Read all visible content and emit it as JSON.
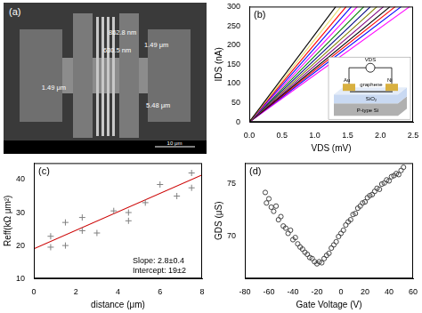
{
  "sem_image": {
    "panel_label": "(a)",
    "annotations": [
      "862.8 nm",
      "630.5 nm",
      "1.49 μm",
      "1.49 μm",
      "5.48 μm"
    ],
    "scale_bar": "10 μm"
  },
  "chart_data": [
    {
      "type": "line",
      "panel_label": "(b)",
      "x_label": "VDS (mV)",
      "y_label": "IDS (nA)",
      "xlim": [
        0,
        2.5
      ],
      "xticks": [
        {
          "value": 0,
          "label": "0.0"
        },
        {
          "value": 0.5,
          "label": "0.5"
        },
        {
          "value": 1,
          "label": "1.0"
        },
        {
          "value": 1.5,
          "label": "1.5"
        },
        {
          "value": 2,
          "label": "2.0"
        },
        {
          "value": 2.5,
          "label": "2.5"
        }
      ],
      "ylim": [
        0,
        300
      ],
      "yticks": [
        0,
        50,
        100,
        150,
        200,
        250,
        300
      ],
      "grid": false,
      "marker": "none",
      "line_style": "solid",
      "inset": {
        "texts": [
          "VDS",
          "Au",
          "Ni",
          "graphene",
          "SiO₂",
          "P-type Si"
        ]
      },
      "series": [
        {
          "color": "#000000",
          "x": [
            0,
            1.32
          ],
          "values": [
            0,
            300
          ]
        },
        {
          "color": "#e8e070",
          "x": [
            0,
            1.4
          ],
          "values": [
            0,
            300
          ]
        },
        {
          "color": "#ff0000",
          "x": [
            0,
            1.48
          ],
          "values": [
            0,
            300
          ]
        },
        {
          "color": "#0000ff",
          "x": [
            0,
            1.56
          ],
          "values": [
            0,
            300
          ]
        },
        {
          "color": "#ff00ff",
          "x": [
            0,
            1.65
          ],
          "values": [
            0,
            300
          ]
        },
        {
          "color": "#008000",
          "x": [
            0,
            1.75
          ],
          "values": [
            0,
            300
          ]
        },
        {
          "color": "#000080",
          "x": [
            0,
            1.85
          ],
          "values": [
            0,
            300
          ]
        },
        {
          "color": "#808000",
          "x": [
            0,
            1.95
          ],
          "values": [
            0,
            300
          ]
        },
        {
          "color": "#800080",
          "x": [
            0,
            2.05
          ],
          "values": [
            0,
            300
          ]
        },
        {
          "color": "#000000",
          "x": [
            0,
            2.15
          ],
          "values": [
            0,
            300
          ]
        },
        {
          "color": "#ff0000",
          "x": [
            0,
            2.23
          ],
          "values": [
            0,
            300
          ]
        },
        {
          "color": "#0000ff",
          "x": [
            0,
            2.32
          ],
          "values": [
            0,
            300
          ]
        },
        {
          "color": "#ff00ff",
          "x": [
            0,
            2.45
          ],
          "values": [
            0,
            300
          ]
        }
      ]
    },
    {
      "type": "scatter",
      "panel_label": "(c)",
      "x_label": "distance (μm)",
      "y_label": "Reff(kΩ μm²)",
      "annotations": [
        "Slope: 2.8±0.4",
        "Intercept: 19±2"
      ],
      "xlim": [
        0,
        8
      ],
      "xticks": [
        0,
        2,
        4,
        6,
        8
      ],
      "ylim": [
        10,
        45
      ],
      "yticks": [
        10,
        20,
        30,
        40
      ],
      "grid": false,
      "series": [
        {
          "color": "#808080",
          "marker": "cross",
          "x": [
            0.8,
            0.8,
            1.5,
            1.5,
            2.3,
            2.3,
            3.0,
            3.8,
            4.5,
            4.5,
            5.3,
            6.0,
            6.8,
            7.5,
            7.5
          ],
          "values": [
            22.8,
            19.5,
            27.0,
            20.0,
            28.5,
            24.5,
            23.8,
            30.5,
            30.0,
            27.5,
            33.0,
            38.5,
            35.0,
            42.0,
            37.5
          ]
        },
        {
          "type": "line",
          "color": "#cc0000",
          "marker": "none",
          "line_style": "solid",
          "x": [
            0,
            8
          ],
          "values": [
            19,
            41.4
          ]
        }
      ]
    },
    {
      "type": "scatter",
      "panel_label": "(d)",
      "x_label": "Gate Voltage (V)",
      "y_label": "GDS (μS)",
      "xlim": [
        -80,
        60
      ],
      "xticks": [
        -80,
        -60,
        -40,
        -20,
        0,
        20,
        40,
        60
      ],
      "ylim": [
        66,
        77
      ],
      "yticks": [
        70,
        75
      ],
      "grid": false,
      "series": [
        {
          "color": "#444444",
          "marker": "circle-open",
          "x": [
            -63,
            -62,
            -60,
            -58,
            -56,
            -54,
            -52,
            -50,
            -48,
            -46,
            -44,
            -42,
            -40,
            -38,
            -36,
            -34,
            -32,
            -30,
            -28,
            -26,
            -24,
            -22,
            -20,
            -18,
            -16,
            -14,
            -12,
            -10,
            -8,
            -6,
            -4,
            -2,
            0,
            2,
            4,
            6,
            8,
            10,
            12,
            14,
            16,
            18,
            20,
            22,
            24,
            26,
            28,
            30,
            32,
            34,
            36,
            38,
            40,
            42,
            44,
            46,
            48,
            50,
            52
          ],
          "values": [
            74.2,
            73.2,
            73.6,
            72.8,
            72.4,
            72.9,
            71.6,
            71.9,
            71.0,
            70.8,
            70.3,
            70.6,
            69.7,
            69.9,
            69.3,
            69.0,
            68.8,
            68.5,
            68.3,
            68.0,
            67.9,
            67.6,
            67.4,
            67.6,
            67.5,
            67.9,
            68.2,
            68.4,
            68.9,
            69.2,
            69.5,
            70.0,
            70.3,
            70.6,
            71.1,
            71.4,
            71.6,
            72.1,
            72.2,
            72.7,
            72.9,
            73.2,
            73.3,
            73.7,
            73.9,
            74.0,
            74.3,
            74.6,
            74.5,
            75.0,
            75.1,
            75.4,
            75.3,
            75.7,
            75.8,
            76.0,
            75.9,
            76.3,
            76.6
          ]
        }
      ]
    }
  ]
}
